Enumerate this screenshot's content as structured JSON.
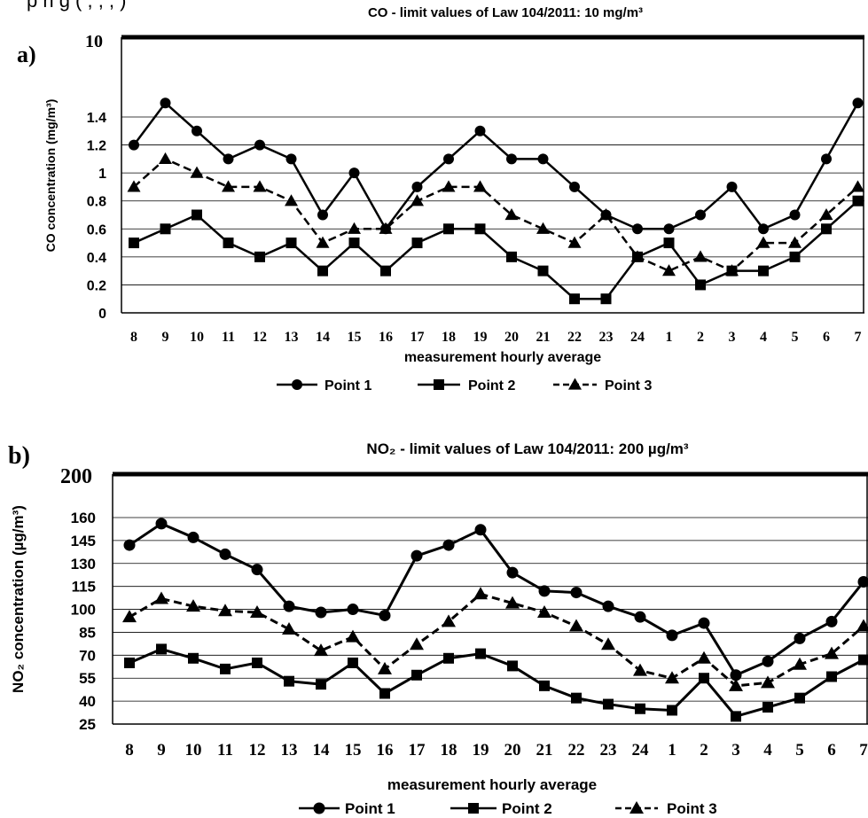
{
  "header_fragment": "p        n       g   (  ,   ,   ,   )",
  "chart_data": [
    {
      "type": "line",
      "panel_label": "a)",
      "title": "CO - limit values of Law 104/2011: 10 mg/m³",
      "xlabel": "measurement hourly average",
      "ylabel": "CO concentration (mg/m³)",
      "categories": [
        "8",
        "9",
        "10",
        "11",
        "12",
        "13",
        "14",
        "15",
        "16",
        "17",
        "18",
        "19",
        "20",
        "21",
        "22",
        "23",
        "24",
        "1",
        "2",
        "3",
        "4",
        "5",
        "6",
        "7"
      ],
      "y_ticks": [
        "0",
        "0.2",
        "0.4",
        "0.6",
        "0.8",
        "1",
        "1.2",
        "1.4"
      ],
      "y_top_label": "10",
      "ylim": [
        0,
        10
      ],
      "grid": true,
      "legend_position": "bottom",
      "series": [
        {
          "name": "Point 1",
          "marker": "circle",
          "dash": "solid",
          "values": [
            1.2,
            1.5,
            1.3,
            1.1,
            1.2,
            1.1,
            0.7,
            1.0,
            0.6,
            0.9,
            1.1,
            1.3,
            1.1,
            1.1,
            0.9,
            0.7,
            0.6,
            0.6,
            0.7,
            0.9,
            0.6,
            0.7,
            1.1,
            1.5
          ]
        },
        {
          "name": "Point 2",
          "marker": "square",
          "dash": "solid",
          "values": [
            0.5,
            0.6,
            0.7,
            0.5,
            0.4,
            0.5,
            0.3,
            0.5,
            0.3,
            0.5,
            0.6,
            0.6,
            0.4,
            0.3,
            0.1,
            0.1,
            0.4,
            0.5,
            0.2,
            0.3,
            0.3,
            0.4,
            0.6,
            0.8
          ]
        },
        {
          "name": "Point 3",
          "marker": "triangle",
          "dash": "dashed",
          "values": [
            0.9,
            1.1,
            1.0,
            0.9,
            0.9,
            0.8,
            0.5,
            0.6,
            0.6,
            0.8,
            0.9,
            0.9,
            0.7,
            0.6,
            0.5,
            0.7,
            0.4,
            0.3,
            0.4,
            0.3,
            0.5,
            0.5,
            0.7,
            0.9
          ]
        }
      ]
    },
    {
      "type": "line",
      "panel_label": "b)",
      "title": "NO₂ - limit values of Law 104/2011: 200 µg/m³",
      "xlabel": "measurement hourly average",
      "ylabel": "NO₂ concentration (µg/m³)",
      "categories": [
        "8",
        "9",
        "10",
        "11",
        "12",
        "13",
        "14",
        "15",
        "16",
        "17",
        "18",
        "19",
        "20",
        "21",
        "22",
        "23",
        "24",
        "1",
        "2",
        "3",
        "4",
        "5",
        "6",
        "7"
      ],
      "y_ticks": [
        "25",
        "40",
        "55",
        "70",
        "85",
        "100",
        "115",
        "130",
        "145",
        "160"
      ],
      "y_top_label": "200",
      "ylim": [
        25,
        200
      ],
      "grid": true,
      "legend_position": "bottom",
      "series": [
        {
          "name": "Point 1",
          "marker": "circle",
          "dash": "solid",
          "values": [
            142,
            156,
            147,
            136,
            126,
            102,
            98,
            100,
            96,
            135,
            142,
            152,
            124,
            112,
            111,
            102,
            95,
            83,
            91,
            57,
            66,
            81,
            92,
            118
          ]
        },
        {
          "name": "Point  2",
          "marker": "square",
          "dash": "solid",
          "values": [
            65,
            74,
            68,
            61,
            65,
            53,
            51,
            65,
            45,
            57,
            68,
            71,
            63,
            50,
            42,
            38,
            35,
            34,
            55,
            30,
            36,
            42,
            56,
            67
          ]
        },
        {
          "name": "Point 3",
          "marker": "triangle",
          "dash": "dashed",
          "values": [
            95,
            107,
            102,
            99,
            98,
            87,
            73,
            82,
            61,
            77,
            92,
            110,
            104,
            98,
            89,
            77,
            60,
            55,
            68,
            50,
            52,
            64,
            71,
            89
          ]
        }
      ]
    }
  ]
}
